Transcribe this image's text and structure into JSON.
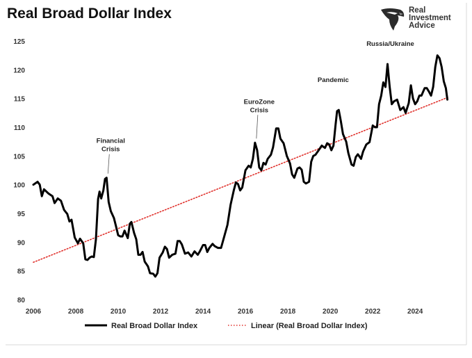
{
  "brand": {
    "line1": "Real",
    "line2": "Investment",
    "line3": "Advice",
    "logo_icon": "eagle-head-icon"
  },
  "chart_data": {
    "type": "line",
    "title": "Real Broad Dollar Index",
    "xlabel": "",
    "ylabel": "",
    "xlim": [
      2006,
      2025.6
    ],
    "ylim": [
      80,
      125
    ],
    "x_ticks": [
      "2006",
      "2008",
      "2010",
      "2012",
      "2014",
      "2016",
      "2018",
      "2020",
      "2022",
      "2024"
    ],
    "y_ticks": [
      "80",
      "85",
      "90",
      "95",
      "100",
      "105",
      "110",
      "115",
      "120",
      "125"
    ],
    "grid": false,
    "legend_position": "bottom",
    "series": [
      {
        "name": "Real Broad Dollar Index",
        "color": "#000000",
        "style": "solid",
        "points": [
          [
            2006.0,
            100.0
          ],
          [
            2006.2,
            100.5
          ],
          [
            2006.3,
            100.0
          ],
          [
            2006.4,
            98.0
          ],
          [
            2006.5,
            99.2
          ],
          [
            2006.7,
            98.5
          ],
          [
            2006.9,
            98.0
          ],
          [
            2007.0,
            96.8
          ],
          [
            2007.15,
            97.6
          ],
          [
            2007.3,
            97.2
          ],
          [
            2007.45,
            95.6
          ],
          [
            2007.6,
            94.9
          ],
          [
            2007.7,
            93.6
          ],
          [
            2007.8,
            93.9
          ],
          [
            2007.95,
            90.8
          ],
          [
            2008.1,
            89.8
          ],
          [
            2008.2,
            90.6
          ],
          [
            2008.35,
            89.8
          ],
          [
            2008.45,
            87.0
          ],
          [
            2008.55,
            86.9
          ],
          [
            2008.65,
            87.3
          ],
          [
            2008.75,
            87.5
          ],
          [
            2008.85,
            87.4
          ],
          [
            2008.95,
            90.5
          ],
          [
            2009.05,
            97.5
          ],
          [
            2009.12,
            98.8
          ],
          [
            2009.2,
            97.6
          ],
          [
            2009.3,
            99.0
          ],
          [
            2009.38,
            101.0
          ],
          [
            2009.45,
            101.2
          ],
          [
            2009.55,
            97.0
          ],
          [
            2009.65,
            95.4
          ],
          [
            2009.8,
            94.2
          ],
          [
            2009.9,
            92.7
          ],
          [
            2010.0,
            91.2
          ],
          [
            2010.1,
            91.0
          ],
          [
            2010.2,
            91.0
          ],
          [
            2010.3,
            92.0
          ],
          [
            2010.45,
            90.7
          ],
          [
            2010.55,
            93.2
          ],
          [
            2010.62,
            93.5
          ],
          [
            2010.75,
            91.6
          ],
          [
            2010.85,
            90.5
          ],
          [
            2010.95,
            87.8
          ],
          [
            2011.05,
            87.8
          ],
          [
            2011.15,
            88.3
          ],
          [
            2011.25,
            86.6
          ],
          [
            2011.4,
            85.8
          ],
          [
            2011.5,
            84.6
          ],
          [
            2011.65,
            84.5
          ],
          [
            2011.75,
            84.0
          ],
          [
            2011.85,
            84.6
          ],
          [
            2011.95,
            87.3
          ],
          [
            2012.1,
            88.2
          ],
          [
            2012.2,
            89.2
          ],
          [
            2012.3,
            88.8
          ],
          [
            2012.4,
            87.3
          ],
          [
            2012.55,
            87.8
          ],
          [
            2012.7,
            88.0
          ],
          [
            2012.8,
            90.2
          ],
          [
            2012.9,
            90.2
          ],
          [
            2013.0,
            89.6
          ],
          [
            2013.15,
            88.0
          ],
          [
            2013.3,
            88.2
          ],
          [
            2013.45,
            87.5
          ],
          [
            2013.6,
            88.4
          ],
          [
            2013.75,
            87.8
          ],
          [
            2013.85,
            88.4
          ],
          [
            2014.0,
            89.5
          ],
          [
            2014.1,
            89.5
          ],
          [
            2014.2,
            88.3
          ],
          [
            2014.3,
            89.0
          ],
          [
            2014.45,
            89.7
          ],
          [
            2014.55,
            89.3
          ],
          [
            2014.7,
            89.0
          ],
          [
            2014.85,
            89.0
          ],
          [
            2015.0,
            91.0
          ],
          [
            2015.15,
            93.0
          ],
          [
            2015.3,
            96.5
          ],
          [
            2015.45,
            99.0
          ],
          [
            2015.55,
            100.4
          ],
          [
            2015.65,
            100.1
          ],
          [
            2015.75,
            99.0
          ],
          [
            2015.85,
            99.5
          ],
          [
            2016.0,
            102.5
          ],
          [
            2016.15,
            103.3
          ],
          [
            2016.25,
            103.0
          ],
          [
            2016.35,
            104.5
          ],
          [
            2016.45,
            107.3
          ],
          [
            2016.55,
            106.0
          ],
          [
            2016.65,
            103.0
          ],
          [
            2016.75,
            102.5
          ],
          [
            2016.85,
            103.8
          ],
          [
            2016.95,
            103.5
          ],
          [
            2017.05,
            104.5
          ],
          [
            2017.2,
            105.2
          ],
          [
            2017.3,
            106.5
          ],
          [
            2017.45,
            109.8
          ],
          [
            2017.55,
            109.8
          ],
          [
            2017.65,
            108.0
          ],
          [
            2017.8,
            107.2
          ],
          [
            2017.95,
            105.0
          ],
          [
            2018.1,
            103.7
          ],
          [
            2018.2,
            101.8
          ],
          [
            2018.3,
            101.2
          ],
          [
            2018.45,
            102.8
          ],
          [
            2018.55,
            103.0
          ],
          [
            2018.65,
            102.6
          ],
          [
            2018.75,
            100.5
          ],
          [
            2018.85,
            100.2
          ],
          [
            2019.0,
            100.5
          ],
          [
            2019.1,
            104.0
          ],
          [
            2019.2,
            105.0
          ],
          [
            2019.3,
            105.2
          ],
          [
            2019.45,
            106.0
          ],
          [
            2019.6,
            106.8
          ],
          [
            2019.75,
            106.4
          ],
          [
            2019.85,
            107.2
          ],
          [
            2019.95,
            107.0
          ],
          [
            2020.05,
            106.0
          ],
          [
            2020.15,
            106.8
          ],
          [
            2020.25,
            110.5
          ],
          [
            2020.32,
            112.8
          ],
          [
            2020.4,
            113.0
          ],
          [
            2020.5,
            111.0
          ],
          [
            2020.6,
            108.8
          ],
          [
            2020.75,
            107.5
          ],
          [
            2020.85,
            105.5
          ],
          [
            2021.0,
            103.5
          ],
          [
            2021.1,
            103.3
          ],
          [
            2021.2,
            104.8
          ],
          [
            2021.3,
            105.3
          ],
          [
            2021.45,
            104.5
          ],
          [
            2021.55,
            105.8
          ],
          [
            2021.7,
            107.0
          ],
          [
            2021.85,
            107.4
          ],
          [
            2022.0,
            110.3
          ],
          [
            2022.1,
            110.0
          ],
          [
            2022.2,
            110.0
          ],
          [
            2022.3,
            114.0
          ],
          [
            2022.4,
            115.5
          ],
          [
            2022.5,
            117.8
          ],
          [
            2022.6,
            117.0
          ],
          [
            2022.7,
            121.0
          ],
          [
            2022.8,
            117.0
          ],
          [
            2022.9,
            114.0
          ],
          [
            2023.0,
            114.5
          ],
          [
            2023.15,
            114.8
          ],
          [
            2023.3,
            113.0
          ],
          [
            2023.45,
            113.5
          ],
          [
            2023.55,
            112.5
          ],
          [
            2023.7,
            114.2
          ],
          [
            2023.8,
            117.3
          ],
          [
            2023.9,
            115.0
          ],
          [
            2024.0,
            114.0
          ],
          [
            2024.1,
            114.5
          ],
          [
            2024.2,
            115.5
          ],
          [
            2024.3,
            115.5
          ],
          [
            2024.45,
            116.8
          ],
          [
            2024.55,
            116.8
          ],
          [
            2024.65,
            116.2
          ],
          [
            2024.75,
            115.5
          ],
          [
            2024.85,
            117.0
          ],
          [
            2024.95,
            120.5
          ],
          [
            2025.05,
            122.5
          ],
          [
            2025.15,
            122.0
          ],
          [
            2025.25,
            120.5
          ],
          [
            2025.35,
            118.0
          ],
          [
            2025.45,
            116.8
          ],
          [
            2025.52,
            114.8
          ]
        ]
      },
      {
        "name": "Linear (Real Broad Dollar Index)",
        "color": "#e0302b",
        "style": "dotted",
        "points": [
          [
            2006.0,
            86.5
          ],
          [
            2025.55,
            115.2
          ]
        ]
      }
    ],
    "annotations": [
      {
        "lines": [
          "Financial",
          "Crisis"
        ],
        "x": 2009.45,
        "y": 101.2
      },
      {
        "lines": [
          "EuroZone",
          "Crisis"
        ],
        "x": 2016.45,
        "y": 107.3
      },
      {
        "lines": [
          "Pandemic"
        ],
        "x": 2020.4,
        "y": 113.0
      },
      {
        "lines": [
          "Russia/Ukraine"
        ],
        "x": 2022.7,
        "y": 121.0
      }
    ]
  }
}
